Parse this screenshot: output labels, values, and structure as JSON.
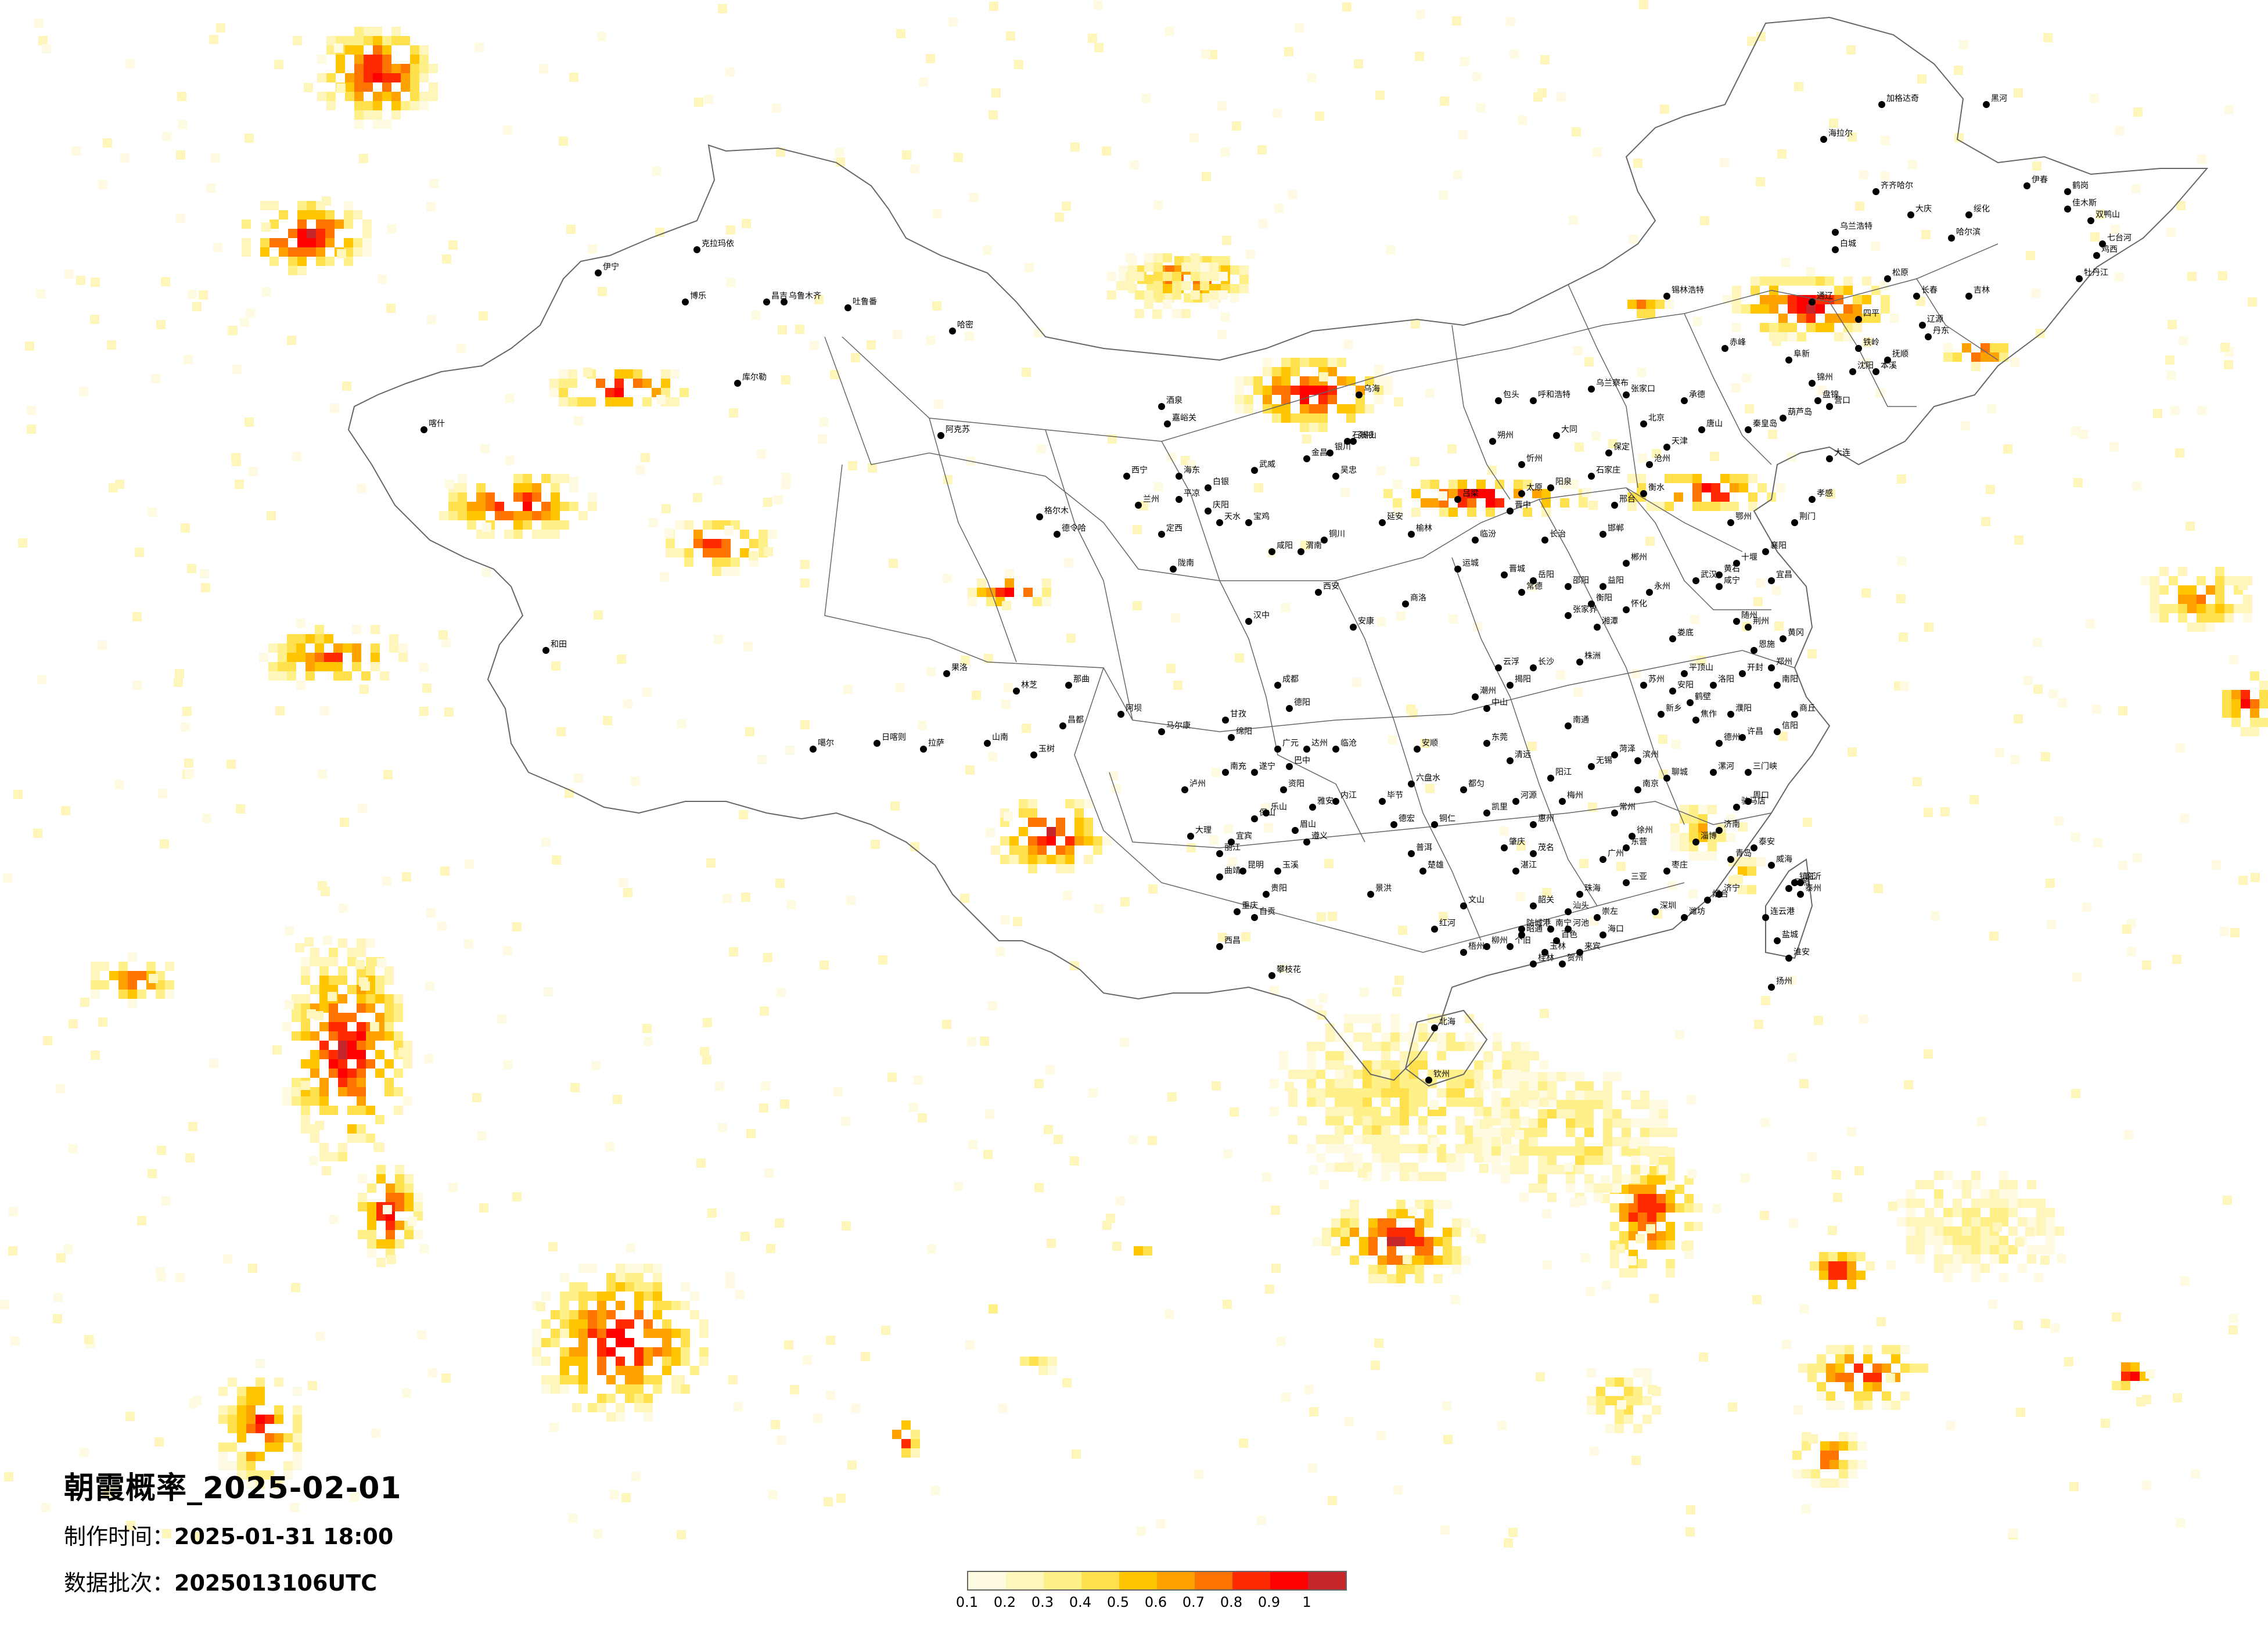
{
  "title": "朝霞概率_2025-02-01",
  "made_time": {
    "label": "制作时间：",
    "value": "2025-01-31 18:00"
  },
  "data_batch": {
    "label": "数据批次：",
    "value": "2025013106UTC"
  },
  "legend": {
    "ticks": [
      "0.1",
      "0.2",
      "0.3",
      "0.4",
      "0.5",
      "0.6",
      "0.7",
      "0.8",
      "0.9",
      "1"
    ],
    "colors": [
      "#fffbe3",
      "#fff6bc",
      "#fff08a",
      "#ffe04d",
      "#ffc500",
      "#ffa200",
      "#ff7400",
      "#ff2a00",
      "#ff0000",
      "#c4262b"
    ]
  },
  "cities": [
    "加格达奇",
    "黑河",
    "海拉尔",
    "伊春",
    "鹤岗",
    "齐齐哈尔",
    "大庆",
    "佳木斯",
    "双鸭山",
    "绥化",
    "哈尔滨",
    "七台河",
    "鸡西",
    "乌兰浩特",
    "白城",
    "松原",
    "牡丹江",
    "长春",
    "吉林",
    "四平",
    "辽源",
    "通辽",
    "锡林浩特",
    "赤峰",
    "阜新",
    "铁岭",
    "抚顺",
    "沈阳",
    "本溪",
    "丹东",
    "锦州",
    "盘锦",
    "营口",
    "葫芦岛",
    "大连",
    "乌海",
    "石嘴山",
    "银川",
    "吴忠",
    "包头",
    "呼和浩特",
    "乌兰察布",
    "张家口",
    "承德",
    "北京",
    "天津",
    "唐山",
    "秦皇岛",
    "保定",
    "沧州",
    "石家庄",
    "衡水",
    "邢台",
    "邯郸",
    "大同",
    "朔州",
    "忻州",
    "太原",
    "阳泉",
    "吕梁",
    "晋中",
    "长治",
    "临汾",
    "运城",
    "晋城",
    "延安",
    "榆林",
    "铜川",
    "宝鸡",
    "咸阳",
    "渭南",
    "西安",
    "商洛",
    "汉中",
    "安康",
    "天水",
    "平凉",
    "庆阳",
    "定西",
    "陇南",
    "兰州",
    "白银",
    "武威",
    "金昌",
    "张掖",
    "酒泉",
    "嘉峪关",
    "西宁",
    "海东",
    "格尔木",
    "德令哈",
    "乌鲁木齐",
    "昌吉",
    "吐鲁番",
    "哈密",
    "克拉玛依",
    "伊宁",
    "博乐",
    "库尔勒",
    "阿克苏",
    "喀什",
    "和田",
    "噶尔",
    "日喀则",
    "拉萨",
    "山南",
    "林芝",
    "那曲",
    "昌都",
    "玉树",
    "果洛",
    "甘孜",
    "阿坝",
    "马尔康",
    "成都",
    "德阳",
    "绵阳",
    "广元",
    "巴中",
    "达州",
    "南充",
    "遂宁",
    "资阳",
    "内江",
    "乐山",
    "眉山",
    "雅安",
    "宜宾",
    "泸州",
    "自贡",
    "西昌",
    "攀枝花",
    "重庆",
    "贵阳",
    "遵义",
    "六盘水",
    "安顺",
    "毕节",
    "都匀",
    "凯里",
    "铜仁",
    "昆明",
    "曲靖",
    "玉溪",
    "大理",
    "丽江",
    "保山",
    "德宏",
    "临沧",
    "普洱",
    "景洪",
    "楚雄",
    "文山",
    "红河",
    "个旧",
    "昭通",
    "南宁",
    "柳州",
    "桂林",
    "梧州",
    "北海",
    "钦州",
    "防城港",
    "玉林",
    "百色",
    "河池",
    "来宾",
    "贺州",
    "崇左",
    "海口",
    "三亚",
    "广州",
    "深圳",
    "珠海",
    "汕头",
    "韶关",
    "湛江",
    "茂名",
    "肇庆",
    "惠州",
    "梅州",
    "河源",
    "阳江",
    "清远",
    "东莞",
    "中山",
    "潮州",
    "揭阳",
    "云浮",
    "长沙",
    "株洲",
    "湘潭",
    "衡阳",
    "邵阳",
    "岳阳",
    "常德",
    "张家界",
    "益阳",
    "郴州",
    "永州",
    "怀化",
    "娄底",
    "武汉",
    "黄石",
    "十堰",
    "宜昌",
    "襄阳",
    "鄂州",
    "荆门",
    "孝感",
    "荆州",
    "黄冈",
    "咸宁",
    "随州",
    "恩施",
    "郑州",
    "开封",
    "洛阳",
    "平顶山",
    "安阳",
    "鹤壁",
    "新乡",
    "焦作",
    "濮阳",
    "许昌",
    "漯河",
    "三门峡",
    "南阳",
    "商丘",
    "信阳",
    "周口",
    "驻马店",
    "济南",
    "青岛",
    "淄博",
    "枣庄",
    "东营",
    "烟台",
    "潍坊",
    "济宁",
    "泰安",
    "威海",
    "日照",
    "临沂",
    "德州",
    "聊城",
    "滨州",
    "菏泽",
    "南京",
    "无锡",
    "徐州",
    "常州",
    "苏州",
    "南通",
    "连云港",
    "淮安",
    "盐城",
    "扬州",
    "镇江",
    "泰州",
    "宿迁",
    "杭州",
    "宁波",
    "温州",
    "嘉兴",
    "湖州",
    "绍兴",
    "金华",
    "衢州",
    "舟山",
    "台州",
    "丽水",
    "合肥",
    "芜湖",
    "蚌埠",
    "淮南",
    "马鞍山",
    "淮北",
    "铜陵",
    "安庆",
    "黄山",
    "滁州",
    "阜阳",
    "宿州",
    "六安",
    "亳州",
    "池州",
    "宣城",
    "南昌",
    "景德镇",
    "萍乡",
    "九江",
    "新余",
    "鹰潭",
    "赣州",
    "吉安",
    "宜春",
    "抚州",
    "上饶",
    "福州",
    "厦门",
    "莆田",
    "三明",
    "泉州",
    "漳州",
    "南平",
    "龙岩",
    "宁德",
    "台北",
    "台中",
    "台南",
    "高雄",
    "花莲"
  ]
}
